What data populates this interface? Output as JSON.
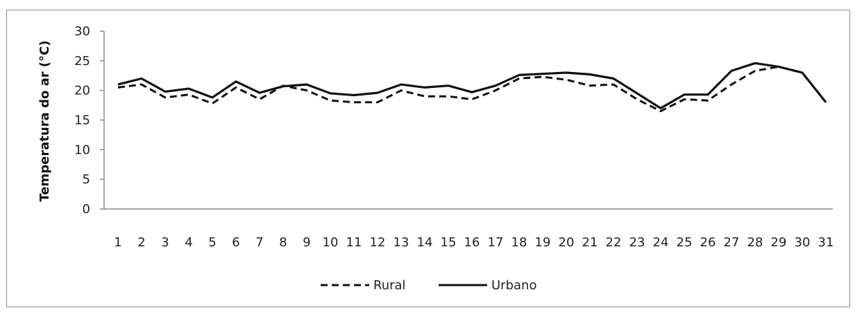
{
  "chart_data": {
    "type": "line",
    "title": "",
    "xlabel": "",
    "ylabel": "Temperatura do ar (°C)",
    "ylim": [
      0,
      30
    ],
    "yticks": [
      "0",
      "5",
      "10",
      "15",
      "20",
      "25",
      "30"
    ],
    "categories": [
      "1",
      "2",
      "3",
      "4",
      "5",
      "6",
      "7",
      "8",
      "9",
      "10",
      "11",
      "12",
      "13",
      "14",
      "15",
      "16",
      "17",
      "18",
      "19",
      "20",
      "21",
      "22",
      "23",
      "24",
      "25",
      "26",
      "27",
      "28",
      "29",
      "30",
      "31"
    ],
    "grid": false,
    "legend_position": "bottom",
    "series": [
      {
        "name": "Rural",
        "line_style": "dashed",
        "color": "#111111",
        "values": [
          20.5,
          21.0,
          18.8,
          19.3,
          17.8,
          20.5,
          18.5,
          20.8,
          20.0,
          18.3,
          18.0,
          18.0,
          20.0,
          19.0,
          19.0,
          18.5,
          20.0,
          22.0,
          22.3,
          21.8,
          20.8,
          21.0,
          18.5,
          16.5,
          18.5,
          18.3,
          21.0,
          23.3,
          24.0,
          23.0,
          18.0
        ]
      },
      {
        "name": "Urbano",
        "line_style": "solid",
        "color": "#111111",
        "values": [
          21.0,
          22.0,
          19.8,
          20.3,
          18.8,
          21.5,
          19.6,
          20.7,
          21.0,
          19.5,
          19.2,
          19.6,
          21.0,
          20.5,
          20.8,
          19.7,
          20.8,
          22.6,
          22.8,
          23.0,
          22.7,
          22.0,
          19.5,
          17.0,
          19.3,
          19.3,
          23.3,
          24.6,
          24.0,
          23.0,
          18.0
        ]
      }
    ]
  }
}
